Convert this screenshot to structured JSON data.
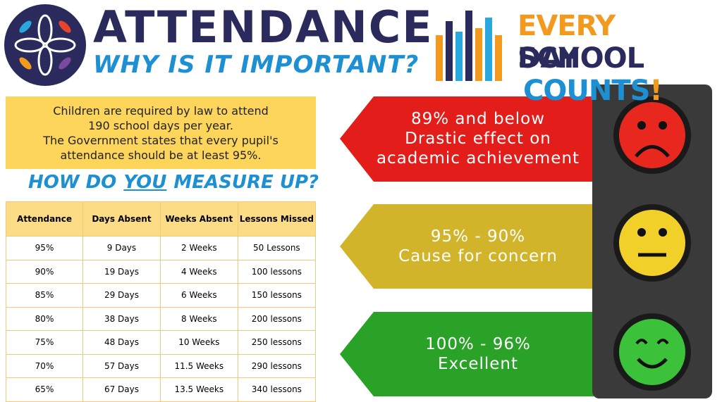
{
  "header": {
    "title": "ATTENDANCE",
    "subtitle": "WHY IS IT IMPORTANT?"
  },
  "slogan": {
    "line1": [
      "EVERY",
      "SCHOOL"
    ],
    "line2": [
      "DAY",
      "COUNTS",
      "!"
    ]
  },
  "info": {
    "lines": [
      "Children are required by law to attend",
      "190 school days per year.",
      "The Government states that every pupil's",
      "attendance should be at least 95%."
    ]
  },
  "measure": {
    "parts": [
      "HOW DO",
      "YOU",
      "MEASURE UP?"
    ]
  },
  "table": {
    "headers": [
      "Attendance",
      "Days Absent",
      "Weeks Absent",
      "Lessons Missed"
    ],
    "rows": [
      [
        "95%",
        "9 Days",
        "2 Weeks",
        "50 Lessons"
      ],
      [
        "90%",
        "19 Days",
        "4 Weeks",
        "100 lessons"
      ],
      [
        "85%",
        "29 Days",
        "6 Weeks",
        "150 lessons"
      ],
      [
        "80%",
        "38 Days",
        "8 Weeks",
        "200 lessons"
      ],
      [
        "75%",
        "48 Days",
        "10 Weeks",
        "250 lessons"
      ],
      [
        "70%",
        "57 Days",
        "11.5 Weeks",
        "290 lessons"
      ],
      [
        "65%",
        "67 Days",
        "13.5 Weeks",
        "340 lessons"
      ]
    ]
  },
  "bands": [
    {
      "lines": [
        "89% and below",
        "Drastic effect on",
        "academic achievement"
      ]
    },
    {
      "lines": [
        "95% - 90%",
        "Cause for concern"
      ]
    },
    {
      "lines": [
        "100% - 96%",
        "Excellent"
      ]
    }
  ]
}
